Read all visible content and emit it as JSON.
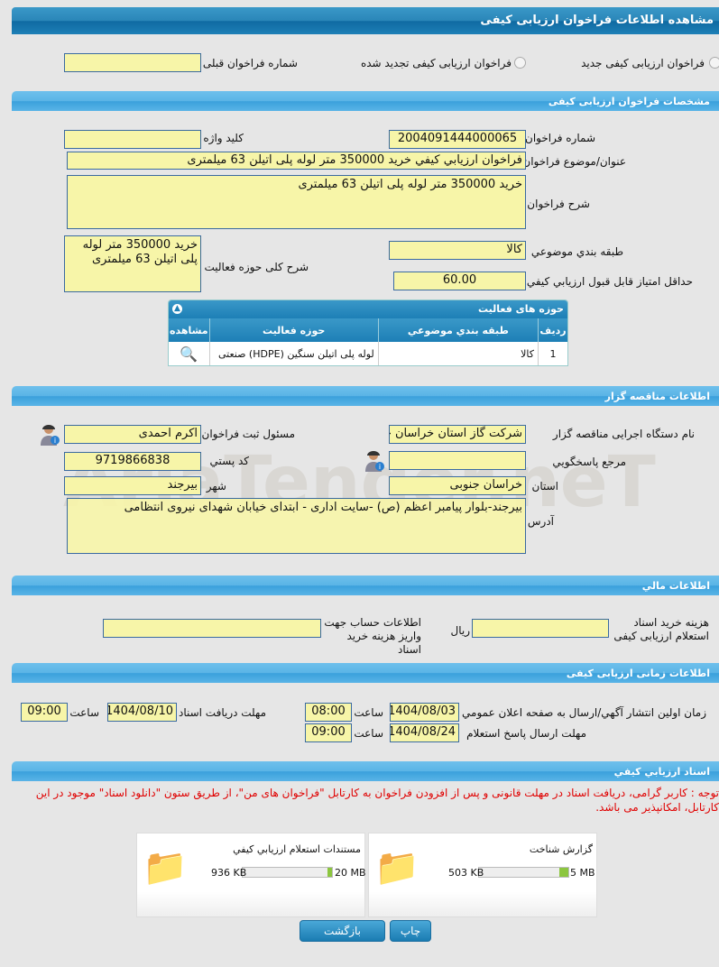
{
  "header": {
    "title": "مشاهده اطلاعات فراخوان ارزیابی کیفی"
  },
  "type": {
    "options": [
      {
        "label": "فراخوان ارزیابی کیفی جدید",
        "selected": false
      },
      {
        "label": "فراخوان ارزیابی کیفی تجدید شده",
        "selected": false
      }
    ],
    "prev_label": "شماره فراخوان قبلی",
    "prev_value": ""
  },
  "spec": {
    "title": "مشخصات فراخوان ارزیابی کیفی",
    "number_label": "شماره فراخوان",
    "number": "2004091444000065",
    "keyword_label": "کلید واژه",
    "keyword": "",
    "subject_label": "عنوان/موضوع فراخوان",
    "subject": "فراخوان ارزيابي كيفي خريد 350000 متر لوله پلی اتيلن 63 ميلمتری",
    "desc_label": "شرح فراخوان",
    "desc": "خريد 350000 متر لوله پلی اتيلن 63 ميلمتری",
    "category_label": "طبقه بندي موضوعي",
    "category": "کالا",
    "scope_label": "شرح کلی حوزه فعالیت",
    "scope": "خريد 350000 متر لوله پلی اتيلن 63 ميلمتری",
    "minscore_label": "حداقل امتیاز قابل قبول ارزيابي كيفي",
    "minscore": "60.00"
  },
  "activities": {
    "title": "حوزه های فعالیت",
    "columns": [
      "ردیف",
      "طبقه بندي موضوعي",
      "حوزه فعالیت",
      "مشاهده"
    ],
    "rows": [
      {
        "index": "1",
        "category": "کالا",
        "field": "لوله پلی اتیلن سنگین (HDPE) صنعتی"
      }
    ]
  },
  "org": {
    "title": "اطلاعات مناقصه گزار",
    "agency_label": "نام دستگاه اجرایی مناقصه گزار",
    "agency": "شرکت گاز استان خراسان جنوبی",
    "registrar_label": "مسئول ثبت فراخوان",
    "registrar": "اکرم احمدی",
    "ref_label": "مرجع پاسخگويي",
    "ref": "",
    "postal_label": "کد پستي",
    "postal": "9719866838",
    "province_label": "استان",
    "province": "خراسان جنوبی",
    "city_label": "شهر",
    "city": "بیرجند",
    "address_label": "آدرس",
    "address": "بیرجند-بلوار پیامبر اعظم (ص) -سایت اداری - ابتدای خیابان شهدای نیروی انتظامی"
  },
  "watermark": "AriaTender.neT",
  "finance": {
    "title": "اطلاعات مالي",
    "fee_label": "هزینه خرید اسناد استعلام ارزیابی کیفی",
    "fee": "",
    "currency": "ریال",
    "account_label": "اطلاعات حساب جهت واریز هزینه خرید اسناد",
    "account": ""
  },
  "timing": {
    "title": "اطلاعات زمانی ارزیابی کیفی",
    "publish_label": "زمان اولين انتشار آگهي/ارسال به صفحه اعلان عمومي",
    "publish_date": "1404/08/03",
    "publish_time": "08:00",
    "receive_label": "مهلت دریافت اسناد",
    "receive_date": "1404/08/10",
    "receive_time": "09:00",
    "reply_label": "مهلت ارسال پاسخ استعلام",
    "reply_date": "1404/08/24",
    "reply_time": "09:00",
    "time_label": "ساعت"
  },
  "docs": {
    "title": "اسناد ارزيابي کيفي",
    "note": "توجه : کاربر گرامی، دریافت اسناد در مهلت قانونی و پس از افزودن فراخوان به کارتابل \"فراخوان های من\"، از طریق ستون \"دانلود اسناد\" موجود در این کارتابل، امکانپذیر می باشد.",
    "files": [
      {
        "name": "گزارش شناخت",
        "size": "503 KB",
        "max": "5 MB",
        "fraction": 0.098
      },
      {
        "name": "مستندات استعلام ارزيابي کيفي",
        "size": "936 KB",
        "max": "20 MB",
        "fraction": 0.046
      }
    ]
  },
  "buttons": {
    "print": "چاپ",
    "back": "بازگشت"
  },
  "colors": {
    "input_bg": "#f7f5a8",
    "header": "#1d7fb6",
    "note": "#e00000"
  }
}
